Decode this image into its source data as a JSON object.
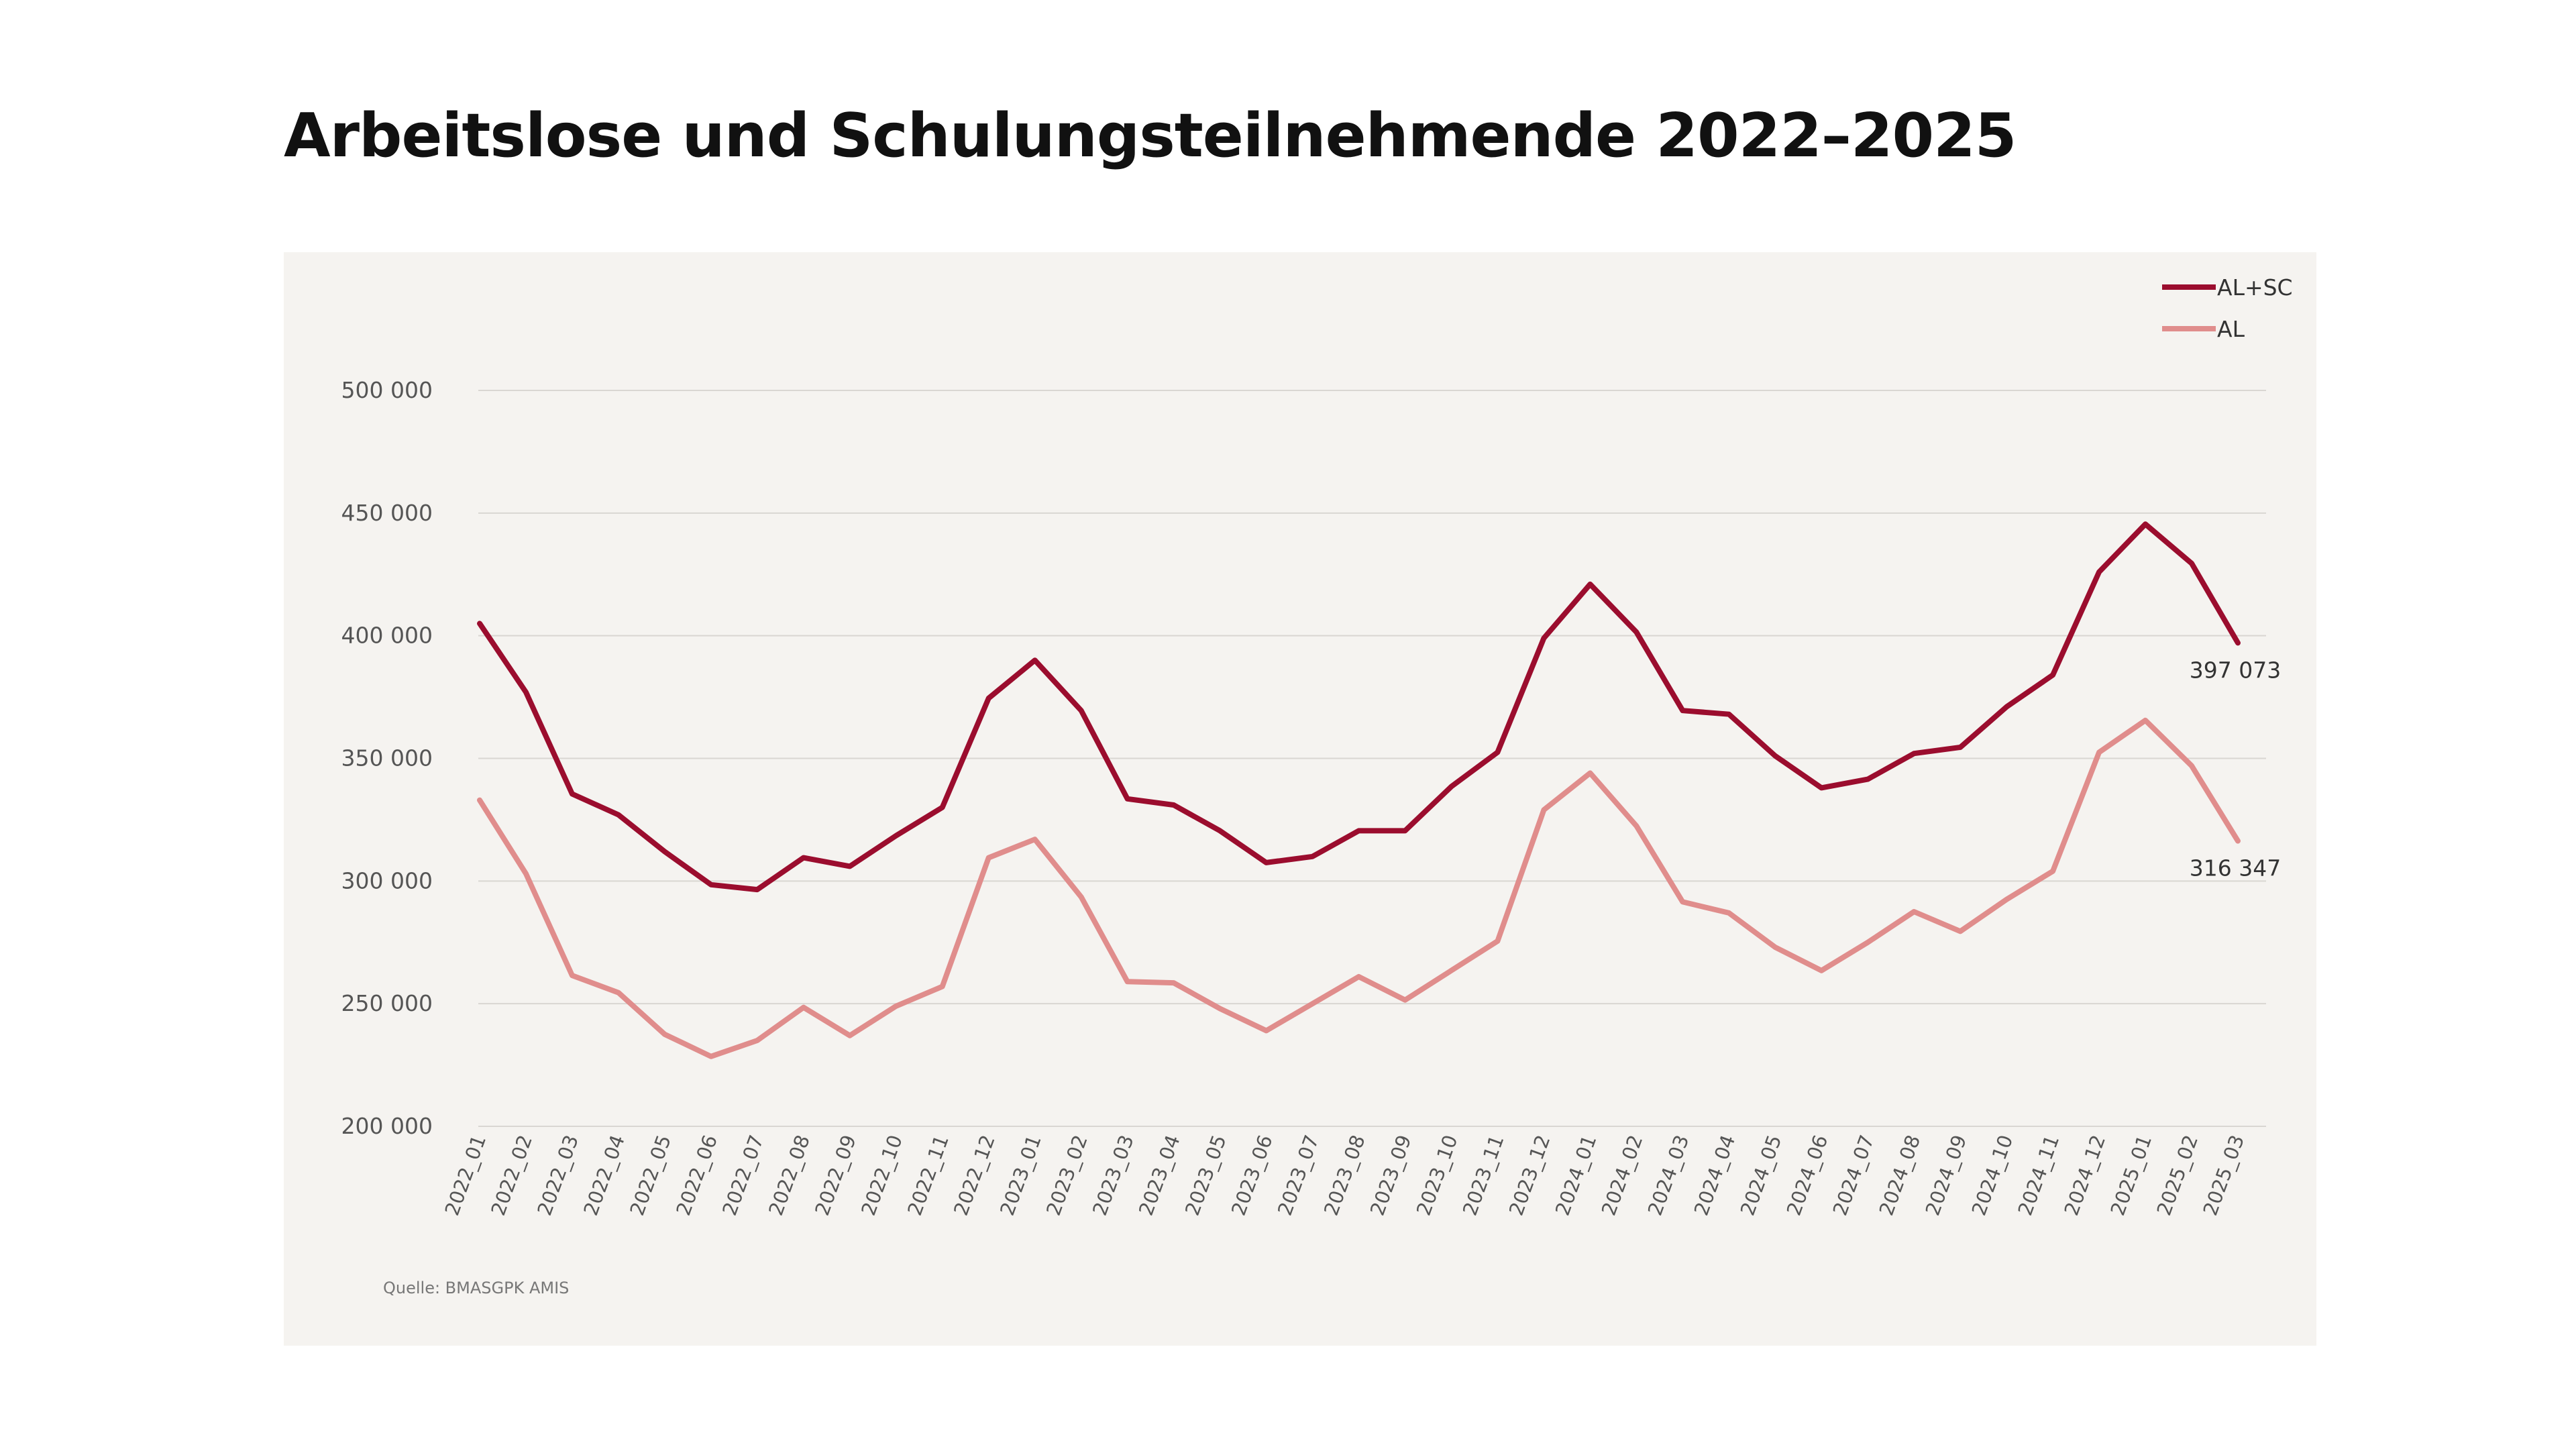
{
  "page": {
    "title": "Arbeitslose und Schulungsteilnehmende 2022–2025",
    "source": "Quelle: BMASGPK AMIS"
  },
  "chart_data": {
    "type": "line",
    "title": "Arbeitslose und Schulungsteilnehmende 2022–2025",
    "xlabel": "",
    "ylabel": "",
    "ylim": [
      200000,
      500000
    ],
    "yticks": [
      200000,
      250000,
      300000,
      350000,
      400000,
      450000,
      500000
    ],
    "ytick_labels": [
      "200 000",
      "250 000",
      "300 000",
      "350 000",
      "400 000",
      "450 000",
      "500 000"
    ],
    "grid": true,
    "legend_position": "top-right",
    "categories": [
      "2022_01",
      "2022_02",
      "2022_03",
      "2022_04",
      "2022_05",
      "2022_06",
      "2022_07",
      "2022_08",
      "2022_09",
      "2022_10",
      "2022_11",
      "2022_12",
      "2023_01",
      "2023_02",
      "2023_03",
      "2023_04",
      "2023_05",
      "2023_06",
      "2023_07",
      "2023_08",
      "2023_09",
      "2023_10",
      "2023_11",
      "2023_12",
      "2024_01",
      "2024_02",
      "2024_03",
      "2024_04",
      "2024_05",
      "2024_06",
      "2024_07",
      "2024_08",
      "2024_09",
      "2024_10",
      "2024_11",
      "2024_12",
      "2025_01",
      "2025_02",
      "2025_03"
    ],
    "series": [
      {
        "name": "AL+SC",
        "color": "#9b0d2e",
        "values": [
          405000,
          377000,
          335500,
          327000,
          312000,
          298500,
          296500,
          309500,
          306000,
          318500,
          330000,
          374500,
          390000,
          369500,
          333500,
          331000,
          320500,
          307500,
          310000,
          320500,
          320500,
          338500,
          352500,
          399000,
          421000,
          401500,
          369500,
          368000,
          351000,
          338000,
          341500,
          352000,
          354500,
          371000,
          384000,
          426000,
          445500,
          429500,
          397073
        ],
        "end_label": "397 073"
      },
      {
        "name": "AL",
        "color": "#e08d8c",
        "values": [
          333000,
          303000,
          261500,
          254500,
          237500,
          228500,
          235000,
          248500,
          237000,
          249000,
          257000,
          309500,
          317000,
          293500,
          259000,
          258500,
          248000,
          239000,
          250000,
          261000,
          251500,
          263500,
          275500,
          329000,
          344000,
          322500,
          291500,
          287000,
          273000,
          263500,
          275000,
          287500,
          279500,
          292500,
          304000,
          352500,
          365500,
          347000,
          316347
        ],
        "end_label": "316 347"
      }
    ]
  }
}
